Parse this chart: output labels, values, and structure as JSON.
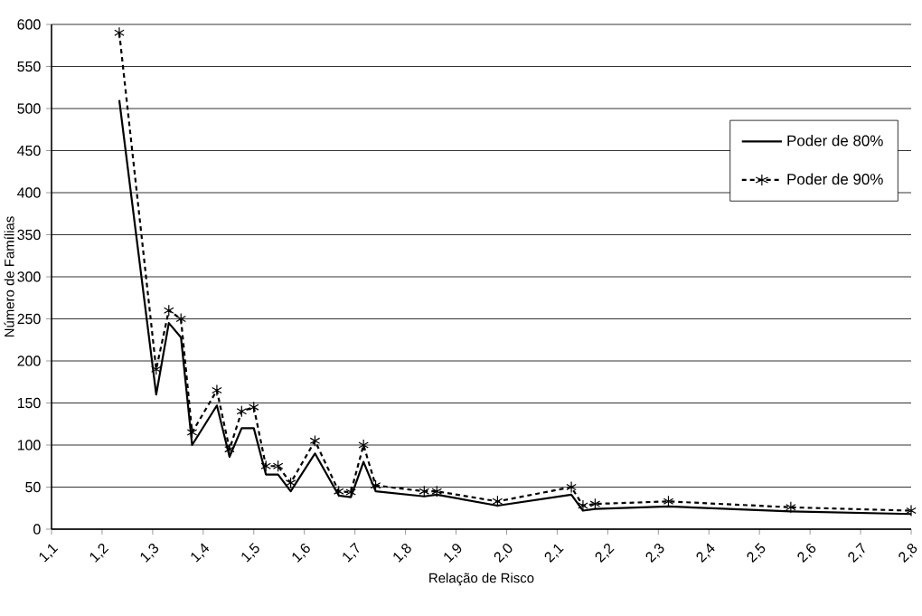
{
  "chart_data": {
    "type": "line",
    "xlabel": "Relação de Risco",
    "ylabel": "Número de Famílias",
    "x": [
      1.234,
      1.307,
      1.332,
      1.356,
      1.378,
      1.427,
      1.452,
      1.476,
      1.5,
      1.524,
      1.548,
      1.573,
      1.621,
      1.668,
      1.692,
      1.717,
      1.741,
      1.837,
      1.862,
      1.982,
      2.128,
      2.151,
      2.175,
      2.32,
      2.562,
      2.8
    ],
    "series": [
      {
        "name": "Poder de 80%",
        "color": "#000000",
        "line_style": "solid",
        "marker": "none",
        "values": [
          510,
          160,
          245,
          228,
          100,
          147,
          86,
          120,
          120,
          65,
          65,
          45,
          90,
          40,
          38,
          80,
          45,
          39,
          41,
          28,
          41,
          22,
          24,
          27,
          21,
          18
        ]
      },
      {
        "name": "Poder de 90%",
        "color": "#000000",
        "line_style": "dashed",
        "marker": "cross",
        "values": [
          590,
          190,
          260,
          250,
          115,
          165,
          95,
          140,
          145,
          75,
          75,
          55,
          105,
          45,
          44,
          100,
          52,
          45,
          45,
          33,
          50,
          28,
          30,
          33,
          26,
          22
        ]
      }
    ],
    "xlim": [
      1.1,
      2.8
    ],
    "ylim": [
      0,
      600
    ],
    "xticks": [
      {
        "value": 1.1,
        "label": "1,1"
      },
      {
        "value": 1.2,
        "label": "1,2"
      },
      {
        "value": 1.3,
        "label": "1,3"
      },
      {
        "value": 1.4,
        "label": "1,4"
      },
      {
        "value": 1.5,
        "label": "1,5"
      },
      {
        "value": 1.6,
        "label": "1,6"
      },
      {
        "value": 1.7,
        "label": "1,7"
      },
      {
        "value": 1.8,
        "label": "1,8"
      },
      {
        "value": 1.9,
        "label": "1,9"
      },
      {
        "value": 2.0,
        "label": "2,0"
      },
      {
        "value": 2.1,
        "label": "2,1"
      },
      {
        "value": 2.2,
        "label": "2,2"
      },
      {
        "value": 2.3,
        "label": "2,3"
      },
      {
        "value": 2.4,
        "label": "2,4"
      },
      {
        "value": 2.5,
        "label": "2,5"
      },
      {
        "value": 2.6,
        "label": "2,6"
      },
      {
        "value": 2.7,
        "label": "2,7"
      },
      {
        "value": 2.8,
        "label": "2,8"
      }
    ],
    "yticks": [
      0,
      50,
      100,
      150,
      200,
      250,
      300,
      350,
      400,
      450,
      500,
      550,
      600
    ],
    "grid": "y",
    "legend": "right"
  }
}
